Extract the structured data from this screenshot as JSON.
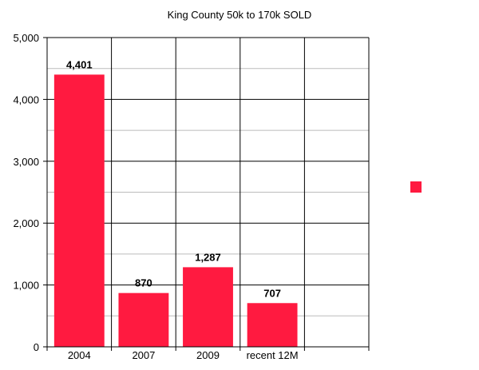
{
  "chart_data": {
    "type": "bar",
    "title": "King County 50k to 170k SOLD",
    "xlabel": "",
    "ylabel": "",
    "categories": [
      "2004",
      "2007",
      "2009",
      "recent 12M",
      ""
    ],
    "series": [
      {
        "values": [
          4401,
          870,
          1287,
          707,
          null
        ]
      }
    ],
    "data_labels": [
      "4,401",
      "870",
      "1,287",
      "707",
      ""
    ],
    "ylim": [
      0,
      5000
    ],
    "yticks": [
      0,
      1000,
      2000,
      3000,
      4000,
      5000
    ],
    "ytick_labels": [
      "0",
      "1,000",
      "2,000",
      "3,000",
      "4,000",
      "5,000"
    ],
    "grid": true,
    "legend": "right",
    "colors": {
      "bar": "#ff1a40",
      "major_grid": "#000000",
      "minor_grid": "#bbbbbb"
    }
  }
}
